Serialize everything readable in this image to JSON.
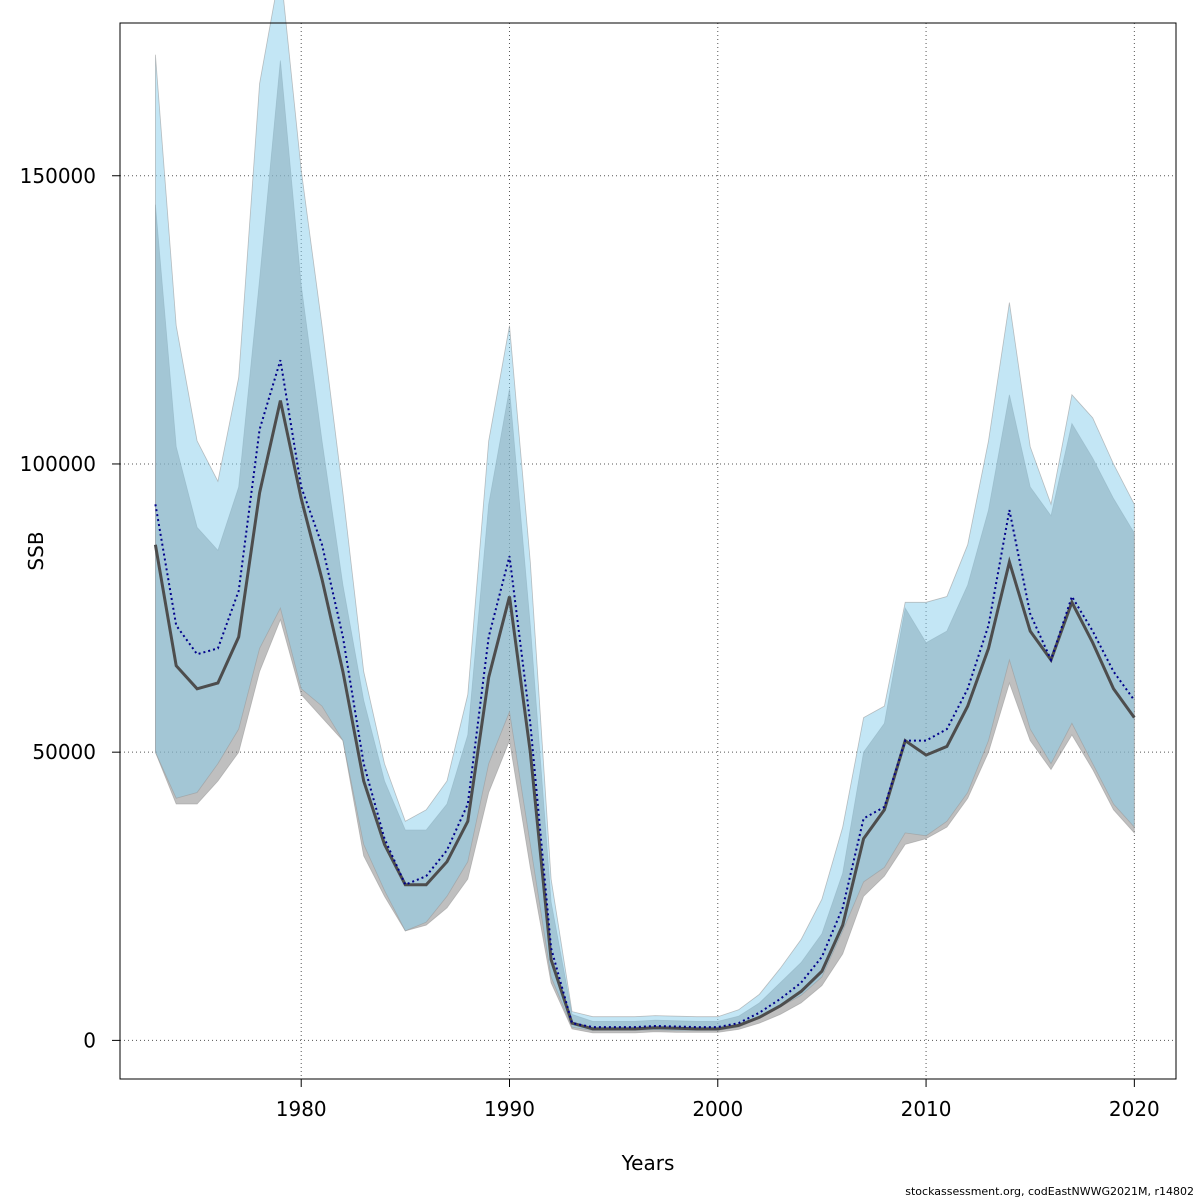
{
  "chart_data": {
    "type": "area",
    "xlabel": "Years",
    "ylabel": "SSB",
    "xlim": [
      1971.3,
      2022.0
    ],
    "ylim": [
      -6700,
      176500
    ],
    "x_ticks": [
      1980,
      1990,
      2000,
      2010,
      2020
    ],
    "y_ticks": [
      0,
      50000,
      100000,
      150000
    ],
    "grid": true,
    "colors": {
      "band_gray": "#808080",
      "band_blue": "#87ceeb",
      "line_gray": "#4d4d4d",
      "line_blue": "#00008b"
    },
    "x": [
      1973,
      1974,
      1975,
      1976,
      1977,
      1978,
      1979,
      1980,
      1981,
      1982,
      1983,
      1984,
      1985,
      1986,
      1987,
      1988,
      1989,
      1990,
      1991,
      1992,
      1993,
      1994,
      1995,
      1996,
      1997,
      1998,
      1999,
      2000,
      2001,
      2002,
      2003,
      2004,
      2005,
      2006,
      2007,
      2008,
      2009,
      2010,
      2011,
      2012,
      2013,
      2014,
      2015,
      2016,
      2017,
      2018,
      2019,
      2020
    ],
    "series": [
      {
        "estimate": [
          86000,
          65000,
          61000,
          62000,
          70000,
          95000,
          111000,
          94000,
          80000,
          64000,
          45000,
          34000,
          27000,
          27000,
          31000,
          38000,
          63000,
          77000,
          50000,
          14000,
          3000,
          2000,
          2000,
          2000,
          2200,
          2100,
          2000,
          2000,
          2600,
          4000,
          6000,
          8500,
          12000,
          20000,
          35000,
          40000,
          52000,
          49500,
          51000,
          58000,
          68000,
          83000,
          71000,
          66000,
          76000,
          69000,
          61000,
          56000
        ],
        "lower": [
          50000,
          41000,
          41000,
          45000,
          50000,
          64000,
          73000,
          60000,
          56000,
          52000,
          32000,
          25000,
          19000,
          20000,
          23000,
          28000,
          43000,
          52000,
          30000,
          10000,
          2000,
          1300,
          1300,
          1300,
          1500,
          1400,
          1400,
          1400,
          1900,
          3000,
          4500,
          6500,
          9500,
          15000,
          25000,
          28500,
          34000,
          35000,
          37000,
          42000,
          50000,
          62000,
          52000,
          47000,
          53000,
          47000,
          40000,
          36000
        ],
        "upper": [
          145000,
          103000,
          89000,
          85000,
          96000,
          132000,
          170000,
          131000,
          104000,
          79000,
          59000,
          45000,
          36500,
          36500,
          41000,
          53000,
          93000,
          113000,
          72000,
          24000,
          4500,
          3300,
          3300,
          3300,
          3500,
          3400,
          3300,
          3300,
          4200,
          6500,
          10000,
          13500,
          18500,
          29000,
          50000,
          55000,
          75000,
          69000,
          71000,
          79000,
          92000,
          112000,
          96000,
          91000,
          107000,
          101000,
          94000,
          88000
        ]
      },
      {
        "estimate": [
          93000,
          72000,
          67000,
          68000,
          78000,
          106000,
          118000,
          96000,
          86000,
          70000,
          48000,
          35000,
          27000,
          28500,
          33000,
          41000,
          70000,
          84000,
          55000,
          16000,
          3000,
          2300,
          2300,
          2300,
          2500,
          2400,
          2300,
          2300,
          3000,
          4800,
          7200,
          10000,
          14500,
          23000,
          38500,
          40500,
          52000,
          52000,
          54000,
          61000,
          72000,
          92000,
          74000,
          66000,
          77000,
          71000,
          64000,
          59000
        ],
        "lower": [
          50000,
          42000,
          43000,
          48000,
          54000,
          68000,
          75000,
          61000,
          58000,
          52000,
          34000,
          26000,
          19000,
          20500,
          25000,
          31000,
          48000,
          57000,
          34000,
          11000,
          2300,
          1700,
          1700,
          1700,
          1800,
          1700,
          1700,
          1700,
          2300,
          3800,
          5800,
          7800,
          11000,
          19000,
          27500,
          30000,
          36000,
          35500,
          38000,
          43000,
          52000,
          66000,
          54000,
          48000,
          55000,
          48000,
          41000,
          37000
        ],
        "upper": [
          171000,
          124000,
          104000,
          97000,
          115000,
          166000,
          186000,
          151000,
          124000,
          95000,
          64000,
          48000,
          38000,
          40000,
          45000,
          60000,
          104000,
          124000,
          83000,
          28000,
          5000,
          4100,
          4100,
          4100,
          4300,
          4200,
          4100,
          4100,
          5300,
          8000,
          12500,
          17500,
          24500,
          37000,
          56000,
          58000,
          76000,
          76000,
          77000,
          86000,
          104000,
          128000,
          103000,
          93000,
          112000,
          108000,
          100000,
          93000
        ]
      }
    ]
  },
  "footer": {
    "text": "stockassessment.org, codEastNWWG2021M, r14802"
  }
}
